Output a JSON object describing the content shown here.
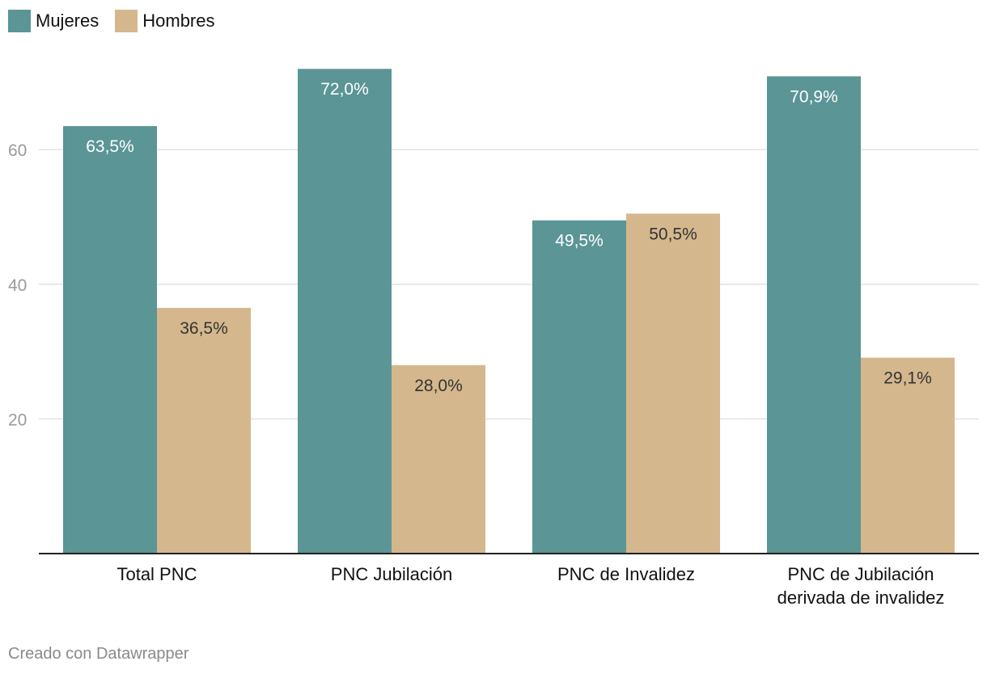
{
  "legend": {
    "mujeres": {
      "label": "Mujeres",
      "color": "#5b9596"
    },
    "hombres": {
      "label": "Hombres",
      "color": "#d4b78c"
    }
  },
  "chart_data": {
    "type": "bar",
    "categories": [
      [
        "Total PNC"
      ],
      [
        "PNC Jubilación"
      ],
      [
        "PNC de Invalidez"
      ],
      [
        "PNC de Jubilación",
        "derivada de invalidez"
      ]
    ],
    "series": [
      {
        "name": "Mujeres",
        "color": "#5b9596",
        "values": [
          63.5,
          72.0,
          49.5,
          70.9
        ],
        "labels": [
          "63,5%",
          "72,0%",
          "49,5%",
          "70,9%"
        ],
        "label_color": "#ffffff"
      },
      {
        "name": "Hombres",
        "color": "#d4b78c",
        "values": [
          36.5,
          28.0,
          50.5,
          29.1
        ],
        "labels": [
          "36,5%",
          "28,0%",
          "50,5%",
          "29,1%"
        ],
        "label_color": "#333333"
      }
    ],
    "y_ticks": [
      20,
      40,
      60
    ],
    "ylim": [
      0,
      72
    ],
    "grid": true,
    "title": "",
    "xlabel": "",
    "ylabel": ""
  },
  "credit": "Creado con Datawrapper"
}
